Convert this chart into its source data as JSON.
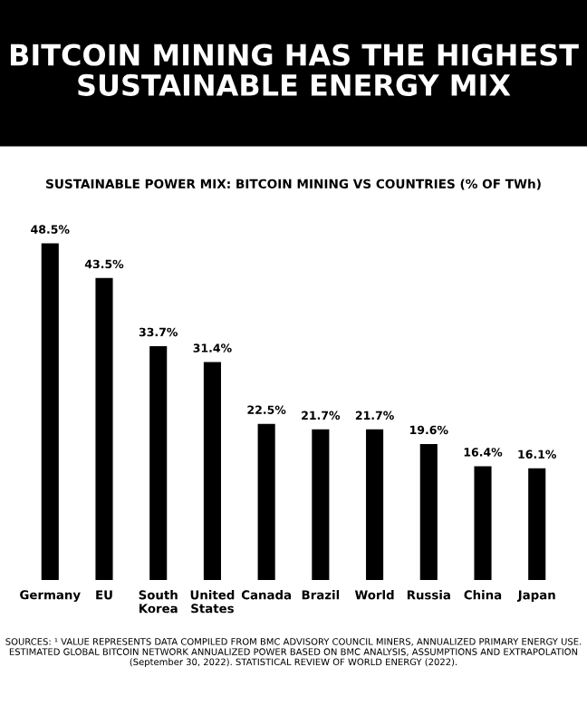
{
  "chart_data": {
    "type": "bar",
    "title": "BITCOIN MINING HAS THE HIGHEST\nSUSTAINABLE ENERGY MIX",
    "subtitle": "SUSTAINABLE POWER MIX: BITCOIN MINING VS COUNTRIES (% OF TWh)",
    "categories": [
      "Germany",
      "EU",
      "South Korea",
      "United States",
      "Canada",
      "Brazil",
      "World",
      "Russia",
      "China",
      "Japan"
    ],
    "values": [
      48.5,
      43.5,
      33.7,
      31.4,
      22.5,
      21.7,
      21.7,
      19.6,
      16.4,
      16.1
    ],
    "value_labels": [
      "48.5%",
      "43.5%",
      "33.7%",
      "31.4%",
      "22.5%",
      "21.7%",
      "21.7%",
      "19.6%",
      "16.4%",
      "16.1%"
    ],
    "color": "#000000",
    "grid": false,
    "annotations": [
      "SOURCES: ¹ VALUE REPRESENTS DATA COMPILED FROM BMC ADVISORY COUNCIL MINERS, ANNUALIZED PRIMARY ENERGY USE. ESTIMATED GLOBAL BITCOIN NETWORK ANNUALIZED POWER BASED ON BMC ANALYSIS, ASSUMPTIONS AND EXTRAPOLATION (September 30, 2022). STATISTICAL REVIEW OF WORLD ENERGY (2022)."
    ]
  }
}
